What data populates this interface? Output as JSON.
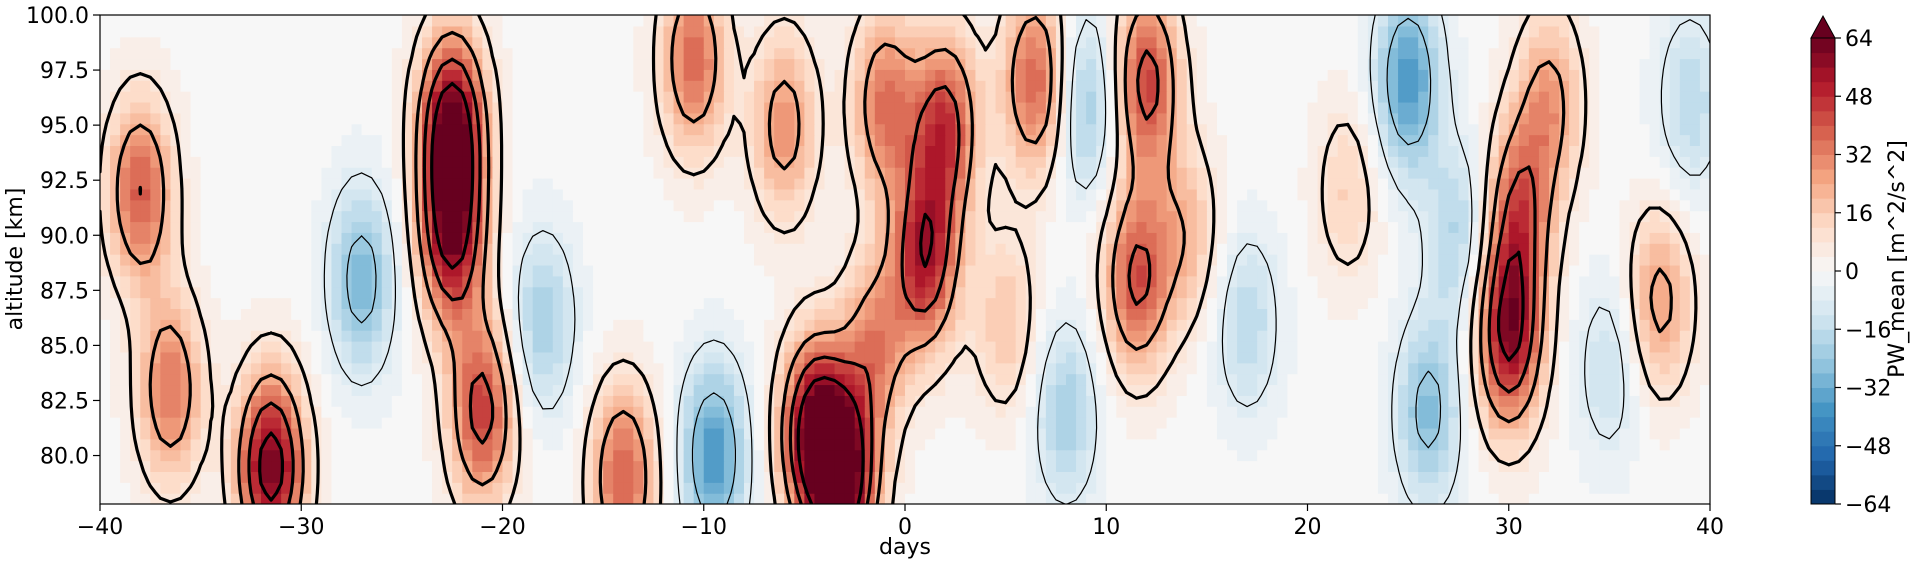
{
  "chart_data": {
    "type": "heatmap",
    "xlabel": "days",
    "ylabel": "altitude [km]",
    "xlim": [
      -40,
      40
    ],
    "ylim": [
      77.8,
      100.0
    ],
    "xticks": [
      -40,
      -30,
      -20,
      -10,
      0,
      10,
      20,
      30,
      40
    ],
    "xtick_labels": [
      "−40",
      "−30",
      "−20",
      "−10",
      "0",
      "10",
      "20",
      "30",
      "40"
    ],
    "yticks": [
      80.0,
      82.5,
      85.0,
      87.5,
      90.0,
      92.5,
      95.0,
      97.5,
      100.0
    ],
    "ytick_labels": [
      "80.0",
      "82.5",
      "85.0",
      "87.5",
      "90.0",
      "92.5",
      "95.0",
      "97.5",
      "100.0"
    ],
    "colorbar": {
      "label": "PW_mean [m^2/s^2]",
      "vmin": -64,
      "vmax": 64,
      "extend": "max",
      "ticks": [
        -64,
        -48,
        -32,
        -16,
        0,
        16,
        32,
        48,
        64
      ],
      "tick_labels": [
        "−64",
        "−48",
        "−32",
        "−16",
        "0",
        "16",
        "32",
        "48",
        "64"
      ],
      "colormap": "RdBu_r",
      "colors": [
        "#053061",
        "#2166ac",
        "#4393c3",
        "#92c5de",
        "#d1e5f0",
        "#f7f7f7",
        "#fddbc7",
        "#f4a582",
        "#d6604d",
        "#b2182b",
        "#67001f"
      ]
    },
    "contour_overlay": true,
    "features": [
      {
        "day": -38,
        "altitude": 92,
        "value": 40
      },
      {
        "day": -36.5,
        "altitude": 83,
        "value": 35
      },
      {
        "day": -31.5,
        "altitude": 79.5,
        "value": 64
      },
      {
        "day": -27,
        "altitude": 88,
        "value": -30
      },
      {
        "day": -22.5,
        "altitude": 95,
        "value": 64
      },
      {
        "day": -22.5,
        "altitude": 90,
        "value": 55
      },
      {
        "day": -21,
        "altitude": 82,
        "value": 45
      },
      {
        "day": -18,
        "altitude": 86,
        "value": -22
      },
      {
        "day": -14,
        "altitude": 79,
        "value": 40
      },
      {
        "day": -10.5,
        "altitude": 98,
        "value": 38
      },
      {
        "day": -9.5,
        "altitude": 80,
        "value": -38
      },
      {
        "day": -6,
        "altitude": 95,
        "value": 30
      },
      {
        "day": -4.5,
        "altitude": 81,
        "value": 64
      },
      {
        "day": -3,
        "altitude": 79,
        "value": 64
      },
      {
        "day": -1.5,
        "altitude": 85,
        "value": 30
      },
      {
        "day": -1,
        "altitude": 96,
        "value": 35
      },
      {
        "day": 1,
        "altitude": 89,
        "value": 52
      },
      {
        "day": 2,
        "altitude": 95,
        "value": 45
      },
      {
        "day": 5,
        "altitude": 86,
        "value": 18
      },
      {
        "day": 6.5,
        "altitude": 97,
        "value": 40
      },
      {
        "day": 8,
        "altitude": 82,
        "value": -22
      },
      {
        "day": 9,
        "altitude": 96,
        "value": -25
      },
      {
        "day": 11.5,
        "altitude": 88,
        "value": 42
      },
      {
        "day": 12,
        "altitude": 97,
        "value": 45
      },
      {
        "day": 14,
        "altitude": 90,
        "value": 20
      },
      {
        "day": 17,
        "altitude": 86,
        "value": -18
      },
      {
        "day": 22,
        "altitude": 92,
        "value": 15
      },
      {
        "day": 25,
        "altitude": 97,
        "value": -38
      },
      {
        "day": 26,
        "altitude": 82,
        "value": -28
      },
      {
        "day": 27.5,
        "altitude": 90,
        "value": -20
      },
      {
        "day": 30,
        "altitude": 85.5,
        "value": 58
      },
      {
        "day": 30.5,
        "altitude": 91,
        "value": 38
      },
      {
        "day": 32,
        "altitude": 96,
        "value": 28
      },
      {
        "day": 35,
        "altitude": 84,
        "value": -15
      },
      {
        "day": 37.5,
        "altitude": 87,
        "value": 28
      },
      {
        "day": 39,
        "altitude": 96,
        "value": -18
      }
    ]
  }
}
